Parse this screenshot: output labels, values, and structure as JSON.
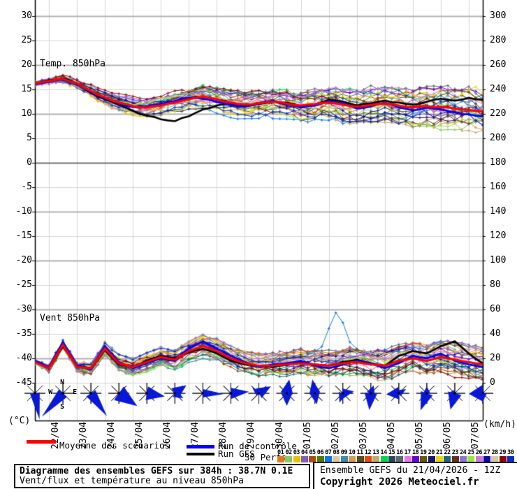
{
  "chart": {
    "temp_label": "Temp. 850hPa",
    "wind_label": "Vent 850hPa",
    "unit_left": "(°C)",
    "unit_right": "(km/h)",
    "left_ticks": [
      30,
      25,
      20,
      15,
      10,
      5,
      0,
      -5,
      -10,
      -15,
      -20,
      -25,
      -30,
      -35,
      -40,
      -45
    ],
    "right_ticks": [
      300,
      280,
      260,
      240,
      220,
      200,
      180,
      160,
      140,
      120,
      100,
      80,
      60,
      40,
      20,
      0
    ],
    "compass_letters": [
      "N",
      "W",
      "E",
      "S"
    ]
  },
  "chart_data": {
    "type": "line",
    "title": "Diagramme des ensembles GEFS sur 384h : 38.7N 0.1E",
    "subtitle": "Vent/flux et température au niveau 850hPa",
    "run": "Ensemble GEFS du 21/04/2026 - 12Z",
    "x": {
      "start": "21/04 12Z",
      "hours": 384,
      "step_hours": 12,
      "dates": [
        "22/04",
        "23/04",
        "24/04",
        "25/04",
        "26/04",
        "27/04",
        "28/04",
        "29/04",
        "30/04",
        "01/05",
        "02/05",
        "03/05",
        "04/05",
        "05/05",
        "06/05",
        "07/05"
      ]
    },
    "y_left": {
      "label": "(°C)",
      "min": -45,
      "max": 30,
      "tick_step": 5
    },
    "y_right": {
      "label": "(km/h)",
      "min": 0,
      "max": 300,
      "tick_step": 20
    },
    "series": [
      {
        "name": "Moyenne des scénarios",
        "variable": "temp",
        "color": "#ff0000",
        "width": 3.2,
        "values_12h": [
          16.1,
          16.7,
          17.2,
          16.3,
          14.7,
          13.4,
          12.3,
          11.6,
          11.3,
          11.7,
          12.3,
          13.0,
          13.5,
          13.0,
          12.3,
          11.9,
          12.2,
          12.5,
          12.1,
          11.7,
          12.0,
          12.3,
          11.9,
          11.5,
          11.8,
          12.1,
          11.7,
          11.3,
          11.6,
          11.4,
          11.1,
          10.8,
          10.5
        ]
      },
      {
        "name": "Run de contrôle",
        "variable": "temp",
        "color": "#0000ff",
        "width": 2.8,
        "values_12h": [
          16.0,
          16.6,
          17.1,
          16.1,
          14.5,
          13.2,
          12.1,
          11.4,
          11.5,
          12.0,
          12.6,
          13.3,
          13.1,
          12.4,
          11.8,
          11.5,
          12.1,
          12.7,
          11.9,
          11.3,
          11.7,
          12.6,
          12.1,
          11.1,
          11.5,
          12.3,
          11.3,
          10.7,
          11.3,
          10.9,
          10.3,
          9.9,
          9.5
        ]
      },
      {
        "name": "Run GFS",
        "variable": "temp",
        "color": "#000000",
        "width": 2.6,
        "values_12h": [
          16.1,
          16.8,
          17.3,
          16.2,
          14.3,
          13.0,
          11.8,
          10.6,
          9.6,
          8.9,
          8.5,
          9.5,
          10.9,
          11.7,
          12.1,
          11.7,
          12.0,
          12.6,
          12.3,
          11.6,
          11.9,
          12.9,
          12.5,
          11.7,
          12.1,
          12.7,
          12.3,
          11.9,
          12.5,
          13.1,
          12.7,
          13.3,
          12.9
        ]
      },
      {
        "name": "Moyenne des scénarios",
        "variable": "wind",
        "color": "#ff0000",
        "width": 3.2,
        "values_12h": [
          17,
          12,
          31,
          13,
          12,
          28,
          16,
          13,
          17,
          21,
          19,
          26,
          30,
          26,
          20,
          16,
          14,
          14,
          15,
          16,
          15,
          14,
          16,
          17,
          15,
          14,
          18,
          20,
          18,
          21,
          19,
          17,
          15
        ]
      },
      {
        "name": "Run de contrôle",
        "variable": "wind",
        "color": "#0000ff",
        "width": 2.8,
        "values_12h": [
          18,
          13,
          33,
          14,
          11,
          30,
          17,
          12,
          16,
          20,
          18,
          28,
          34,
          28,
          22,
          17,
          13,
          15,
          16,
          18,
          14,
          12,
          15,
          18,
          16,
          12,
          16,
          22,
          20,
          24,
          18,
          15,
          13
        ]
      },
      {
        "name": "Run GFS",
        "variable": "wind",
        "color": "#000000",
        "width": 2.6,
        "values_12h": [
          17,
          12,
          30,
          14,
          12,
          27,
          15,
          13,
          18,
          22,
          20,
          25,
          28,
          24,
          18,
          15,
          14,
          13,
          15,
          17,
          15,
          14,
          17,
          19,
          16,
          14,
          22,
          26,
          24,
          30,
          34,
          24,
          16
        ]
      }
    ],
    "ensemble": {
      "count": 30,
      "seed": 11,
      "colors": [
        "#e07820",
        "#88c868",
        "#e8c000",
        "#8858b8",
        "#b04808",
        "#507800",
        "#0878f0",
        "#d8c8a0",
        "#3890a8",
        "#d89858",
        "#604818",
        "#e84808",
        "#c0a870",
        "#00d850",
        "#284858",
        "#586878",
        "#e878e8",
        "#6800d8",
        "#685800",
        "#181868",
        "#e8d800",
        "#186880",
        "#683018",
        "#8878d8",
        "#98e838",
        "#d078d8",
        "#1008a0",
        "#d8c8a0",
        "#980000",
        "#0030c8"
      ],
      "temp_spread": {
        "start": 0.35,
        "end": 2.3
      },
      "wind_spread": {
        "start": 2.2,
        "end": 5.5
      },
      "wind_anomaly": {
        "member": 6,
        "center_index_6h": 43,
        "amplitude": 38
      }
    },
    "wind_roses": [
      {
        "petals": [
          {
            "b": 170,
            "l": 38,
            "w": 7
          }
        ]
      },
      {
        "petals": [
          {
            "b": 222,
            "l": 45,
            "w": 8
          }
        ]
      },
      {
        "petals": [
          {
            "b": 145,
            "l": 40,
            "w": 8
          }
        ]
      },
      {
        "petals": [
          {
            "b": 125,
            "l": 32,
            "w": 12
          }
        ]
      },
      {
        "petals": [
          {
            "b": 100,
            "l": 26,
            "w": 10
          }
        ]
      },
      {
        "petals": [
          {
            "b": 55,
            "l": 20,
            "w": 9
          },
          {
            "b": 120,
            "l": 14,
            "w": 6
          }
        ]
      },
      {
        "petals": [
          {
            "b": 92,
            "l": 30,
            "w": 6
          }
        ]
      },
      {
        "petals": [
          {
            "b": 85,
            "l": 26,
            "w": 8
          }
        ]
      },
      {
        "petals": [
          {
            "b": 60,
            "l": 20,
            "w": 8
          },
          {
            "b": 310,
            "l": 12,
            "w": 5
          }
        ]
      },
      {
        "petals": [
          {
            "b": 10,
            "l": 20,
            "w": 9
          },
          {
            "b": 180,
            "l": 18,
            "w": 8
          }
        ]
      },
      {
        "petals": [
          {
            "b": 350,
            "l": 20,
            "w": 8
          },
          {
            "b": 170,
            "l": 16,
            "w": 7
          }
        ]
      },
      {
        "petals": [
          {
            "b": 80,
            "l": 16,
            "w": 7
          },
          {
            "b": 200,
            "l": 14,
            "w": 6
          }
        ]
      },
      {
        "petals": [
          {
            "b": 185,
            "l": 24,
            "w": 9
          },
          {
            "b": 20,
            "l": 12,
            "w": 6
          }
        ]
      },
      {
        "petals": [
          {
            "b": 265,
            "l": 18,
            "w": 9
          },
          {
            "b": 60,
            "l": 12,
            "w": 5
          }
        ]
      },
      {
        "petals": [
          {
            "b": 200,
            "l": 26,
            "w": 9
          },
          {
            "b": 0,
            "l": 10,
            "w": 5
          }
        ]
      },
      {
        "petals": [
          {
            "b": 195,
            "l": 24,
            "w": 10
          },
          {
            "b": 270,
            "l": 10,
            "w": 5
          }
        ]
      },
      {
        "petals": [
          {
            "b": 268,
            "l": 20,
            "w": 12
          },
          {
            "b": 180,
            "l": 12,
            "w": 6
          }
        ]
      }
    ],
    "rose_color": "#0818d8",
    "grid": {
      "minor": "#d4d4d4",
      "major": "#b0b0b0",
      "zero": "#707070"
    }
  },
  "legend": {
    "mean_label": "Moyenne des scénarios",
    "mean_color": "#ff0000",
    "control_label": "Run de contrôle",
    "control_color": "#0000ff",
    "gfs_label": "Run GFS",
    "gfs_color": "#000000",
    "perts_label": "30 Perts.",
    "pert_numbers": [
      "01",
      "02",
      "03",
      "04",
      "05",
      "06",
      "07",
      "08",
      "09",
      "10",
      "11",
      "12",
      "13",
      "14",
      "15",
      "16",
      "17",
      "18",
      "19",
      "20",
      "21",
      "22",
      "23",
      "24",
      "25",
      "26",
      "27",
      "28",
      "29",
      "30"
    ]
  },
  "footer_left": {
    "line1": "Diagramme des ensembles GEFS sur 384h : 38.7N 0.1E",
    "line2": "Vent/flux et température au niveau 850hPa"
  },
  "footer_right": {
    "line1": "Ensemble GEFS du 21/04/2026 - 12Z",
    "line2": "Copyright 2026 Meteociel.fr"
  }
}
